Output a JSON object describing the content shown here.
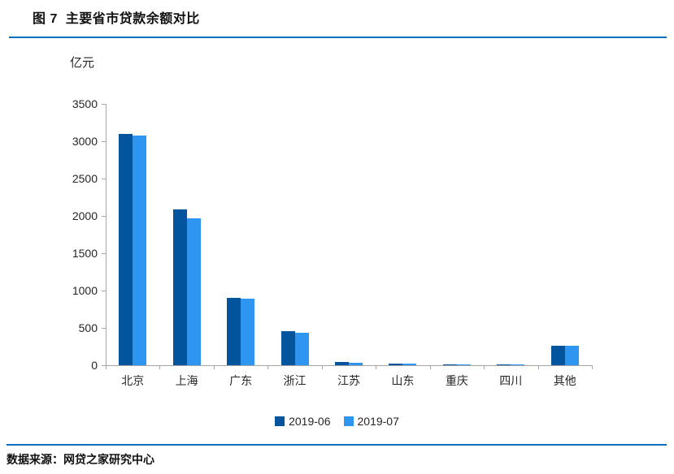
{
  "figure": {
    "title": "图 7  主要省市贷款余额对比",
    "unit_label": "亿元",
    "source": "数据来源：网贷之家研究中心"
  },
  "colors": {
    "series_2019_06": "#02559d",
    "series_2019_07": "#2e96f0",
    "rule_blue": "#0c6cc4",
    "axis_gray": "#a6a6a6"
  },
  "chart_data": {
    "type": "bar",
    "title": "图 7  主要省市贷款余额对比",
    "categories": [
      "北京",
      "上海",
      "广东",
      "浙江",
      "江苏",
      "山东",
      "重庆",
      "四川",
      "其他"
    ],
    "series": [
      {
        "name": "2019-06",
        "color": "#02559d",
        "values": [
          3100,
          2085,
          900,
          458,
          42,
          20,
          16,
          14,
          262
        ]
      },
      {
        "name": "2019-07",
        "color": "#2e96f0",
        "values": [
          3072,
          1970,
          888,
          436,
          30,
          18,
          15,
          13,
          260
        ]
      }
    ],
    "xlabel": "",
    "ylabel": "亿元",
    "ylim": [
      0,
      3500
    ],
    "yticks": [
      3500,
      3000,
      2500,
      2000,
      1500,
      1000,
      500,
      0
    ],
    "grid": false,
    "legend_position": "bottom"
  }
}
